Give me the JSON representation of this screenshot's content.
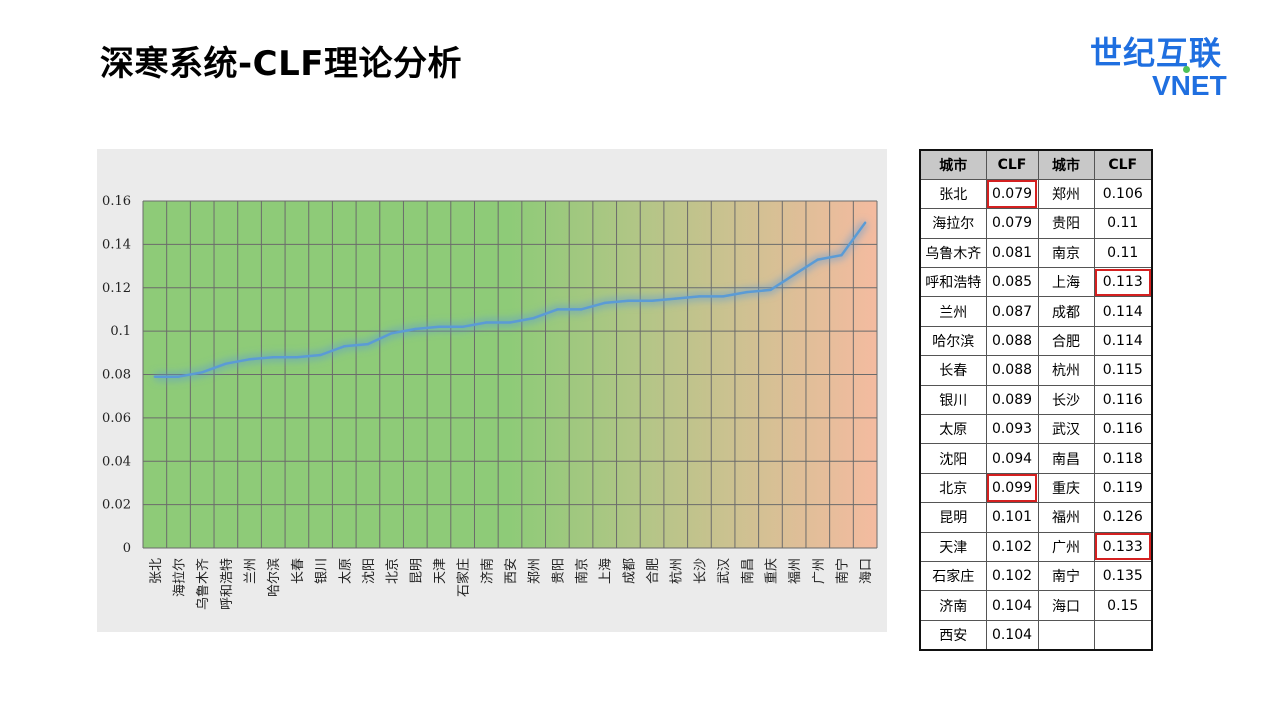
{
  "page": {
    "title": "深寒系统-CLF理论分析",
    "logo_cn": "世纪互联",
    "logo_en": "VNET"
  },
  "chart_data": {
    "type": "line",
    "categories": [
      "张北",
      "海拉尔",
      "乌鲁木齐",
      "呼和浩特",
      "兰州",
      "哈尔滨",
      "长春",
      "银川",
      "太原",
      "沈阳",
      "北京",
      "昆明",
      "天津",
      "石家庄",
      "济南",
      "西安",
      "郑州",
      "贵阳",
      "南京",
      "上海",
      "成都",
      "合肥",
      "杭州",
      "长沙",
      "武汉",
      "南昌",
      "重庆",
      "福州",
      "广州",
      "南宁",
      "海口"
    ],
    "values": [
      0.079,
      0.079,
      0.081,
      0.085,
      0.087,
      0.088,
      0.088,
      0.089,
      0.093,
      0.094,
      0.099,
      0.101,
      0.102,
      0.102,
      0.104,
      0.104,
      0.106,
      0.11,
      0.11,
      0.113,
      0.114,
      0.114,
      0.115,
      0.116,
      0.116,
      0.118,
      0.119,
      0.126,
      0.133,
      0.135,
      0.15
    ],
    "ylim": [
      0,
      0.16
    ],
    "yticks": [
      "0",
      "0.02",
      "0.04",
      "0.06",
      "0.08",
      "0.1",
      "0.12",
      "0.14",
      "0.16"
    ],
    "grid": true,
    "line_color": "#5b9bd5",
    "bg_gradient": [
      "#8ecb78",
      "#f4bba0"
    ]
  },
  "table": {
    "headers": [
      "城市",
      "CLF",
      "城市",
      "CLF"
    ],
    "rows": [
      {
        "c1": "张北",
        "v1": "0.079",
        "c2": "郑州",
        "v2": "0.106",
        "h1": true,
        "h2": false
      },
      {
        "c1": "海拉尔",
        "v1": "0.079",
        "c2": "贵阳",
        "v2": "0.11",
        "h1": false,
        "h2": false
      },
      {
        "c1": "乌鲁木齐",
        "v1": "0.081",
        "c2": "南京",
        "v2": "0.11",
        "h1": false,
        "h2": false
      },
      {
        "c1": "呼和浩特",
        "v1": "0.085",
        "c2": "上海",
        "v2": "0.113",
        "h1": false,
        "h2": true
      },
      {
        "c1": "兰州",
        "v1": "0.087",
        "c2": "成都",
        "v2": "0.114",
        "h1": false,
        "h2": false
      },
      {
        "c1": "哈尔滨",
        "v1": "0.088",
        "c2": "合肥",
        "v2": "0.114",
        "h1": false,
        "h2": false
      },
      {
        "c1": "长春",
        "v1": "0.088",
        "c2": "杭州",
        "v2": "0.115",
        "h1": false,
        "h2": false
      },
      {
        "c1": "银川",
        "v1": "0.089",
        "c2": "长沙",
        "v2": "0.116",
        "h1": false,
        "h2": false
      },
      {
        "c1": "太原",
        "v1": "0.093",
        "c2": "武汉",
        "v2": "0.116",
        "h1": false,
        "h2": false
      },
      {
        "c1": "沈阳",
        "v1": "0.094",
        "c2": "南昌",
        "v2": "0.118",
        "h1": false,
        "h2": false
      },
      {
        "c1": "北京",
        "v1": "0.099",
        "c2": "重庆",
        "v2": "0.119",
        "h1": true,
        "h2": false
      },
      {
        "c1": "昆明",
        "v1": "0.101",
        "c2": "福州",
        "v2": "0.126",
        "h1": false,
        "h2": false
      },
      {
        "c1": "天津",
        "v1": "0.102",
        "c2": "广州",
        "v2": "0.133",
        "h1": false,
        "h2": true
      },
      {
        "c1": "石家庄",
        "v1": "0.102",
        "c2": "南宁",
        "v2": "0.135",
        "h1": false,
        "h2": false
      },
      {
        "c1": "济南",
        "v1": "0.104",
        "c2": "海口",
        "v2": "0.15",
        "h1": false,
        "h2": false
      },
      {
        "c1": "西安",
        "v1": "0.104",
        "c2": "",
        "v2": "",
        "h1": false,
        "h2": false
      }
    ]
  }
}
